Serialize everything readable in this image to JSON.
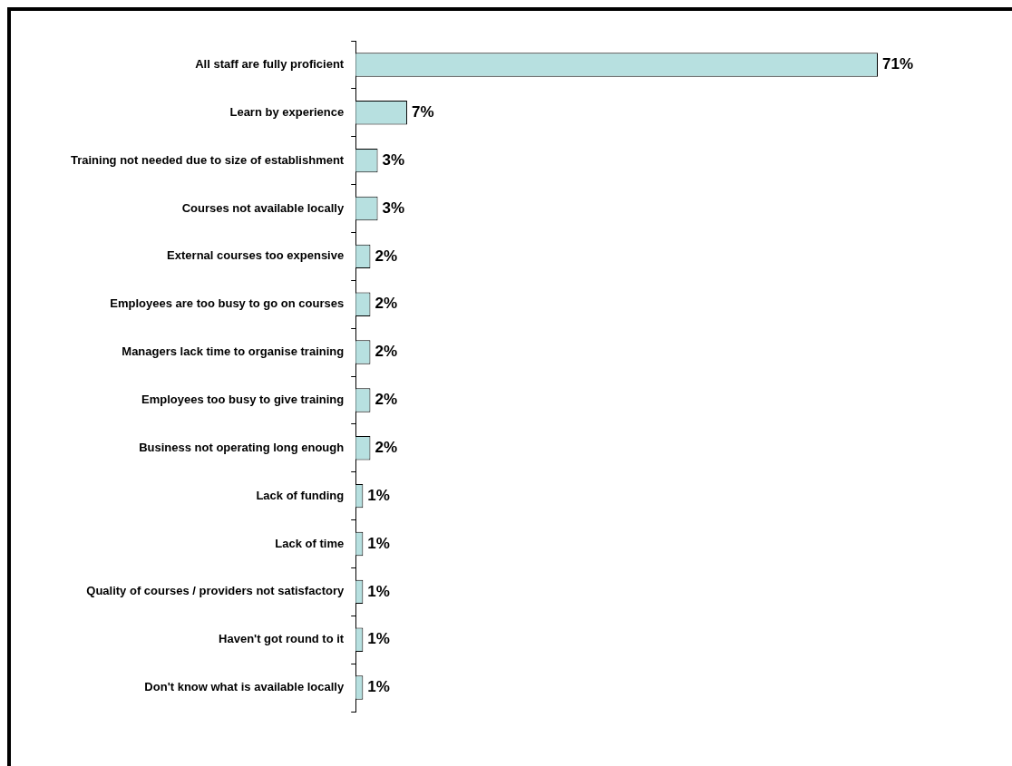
{
  "chart_data": {
    "type": "bar",
    "orientation": "horizontal",
    "categories": [
      "All staff are fully proficient",
      "Learn by experience",
      "Training not needed due to size of establishment",
      "Courses not available locally",
      "External courses too expensive",
      "Employees are too busy to go on courses",
      "Managers lack time to organise training",
      "Employees too busy to give training",
      "Business not operating long enough",
      "Lack of funding",
      "Lack of time",
      "Quality of courses / providers not satisfactory",
      "Haven't got round to it",
      "Don't know what is available locally"
    ],
    "values": [
      71,
      7,
      3,
      3,
      2,
      2,
      2,
      2,
      2,
      1,
      1,
      1,
      1,
      1
    ],
    "value_labels": [
      "71%",
      "7%",
      "3%",
      "3%",
      "2%",
      "2%",
      "2%",
      "2%",
      "2%",
      "1%",
      "1%",
      "1%",
      "1%",
      "1%"
    ],
    "color": "#b7e0e0"
  }
}
